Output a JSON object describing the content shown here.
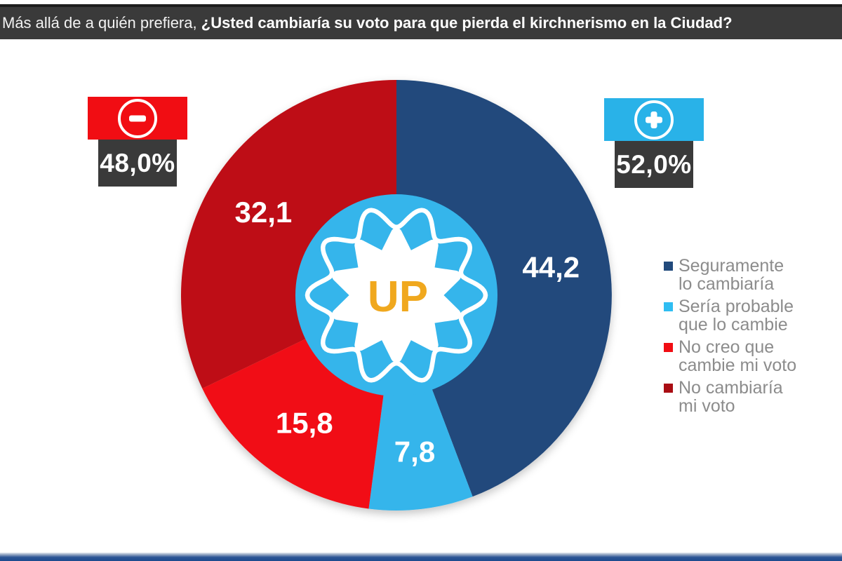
{
  "title": {
    "prefix": "Más allá de a quién prefiera,",
    "emphasis": "¿Usted cambiaría su voto para que pierda el kirchnerismo en la Ciudad?"
  },
  "badges": {
    "negative": {
      "icon": "minus-in-circle",
      "percent": "48,0%",
      "box_color": "#f10d13",
      "panel_color": "#3a3a3a"
    },
    "positive": {
      "icon": "plus-in-circle",
      "percent": "52,0%",
      "box_color": "#29b2e8",
      "panel_color": "#3a3a3a"
    }
  },
  "chart_data": {
    "type": "pie",
    "title": "Más allá de a quién prefiera, ¿Usted cambiaría su voto para que pierda el kirchnerismo en la Ciudad?",
    "direction": "clockwise",
    "start_angle_deg": 0,
    "slices": [
      {
        "label": "Seguramente lo cambiaría",
        "value": 44.2,
        "display": "44,2",
        "color": "#224a7c"
      },
      {
        "label": "Sería probable que lo cambie",
        "value": 7.8,
        "display": "7,8",
        "color": "#35b5eb"
      },
      {
        "label": "No creo que cambie mi voto",
        "value": 15.8,
        "display": "15,8",
        "color": "#f10d13"
      },
      {
        "label": "No cambiaría mi voto",
        "value": 32.1,
        "display": "32,1",
        "color": "#be0a12"
      }
    ],
    "aggregates": {
      "would_change_total": {
        "display": "52,0%",
        "value": 52.0
      },
      "would_not_change_total": {
        "display": "48,0%",
        "value": 48.0
      }
    },
    "center_logo": {
      "text": "UP",
      "circle_color": "#35b5eb",
      "starburst_color": "#ffffff",
      "text_color": "#f0a81e"
    },
    "legend_position": "right"
  },
  "legend": {
    "items": [
      {
        "lines": [
          "Seguramente",
          "lo cambiaría"
        ],
        "color": "#224a7c"
      },
      {
        "lines": [
          "Sería probable",
          "que lo cambie"
        ],
        "color": "#2fbdf2"
      },
      {
        "lines": [
          "No creo que",
          "cambie mi voto"
        ],
        "color": "#f10d13"
      },
      {
        "lines": [
          "No cambiaría",
          "mi voto"
        ],
        "color": "#a90d13"
      }
    ]
  }
}
